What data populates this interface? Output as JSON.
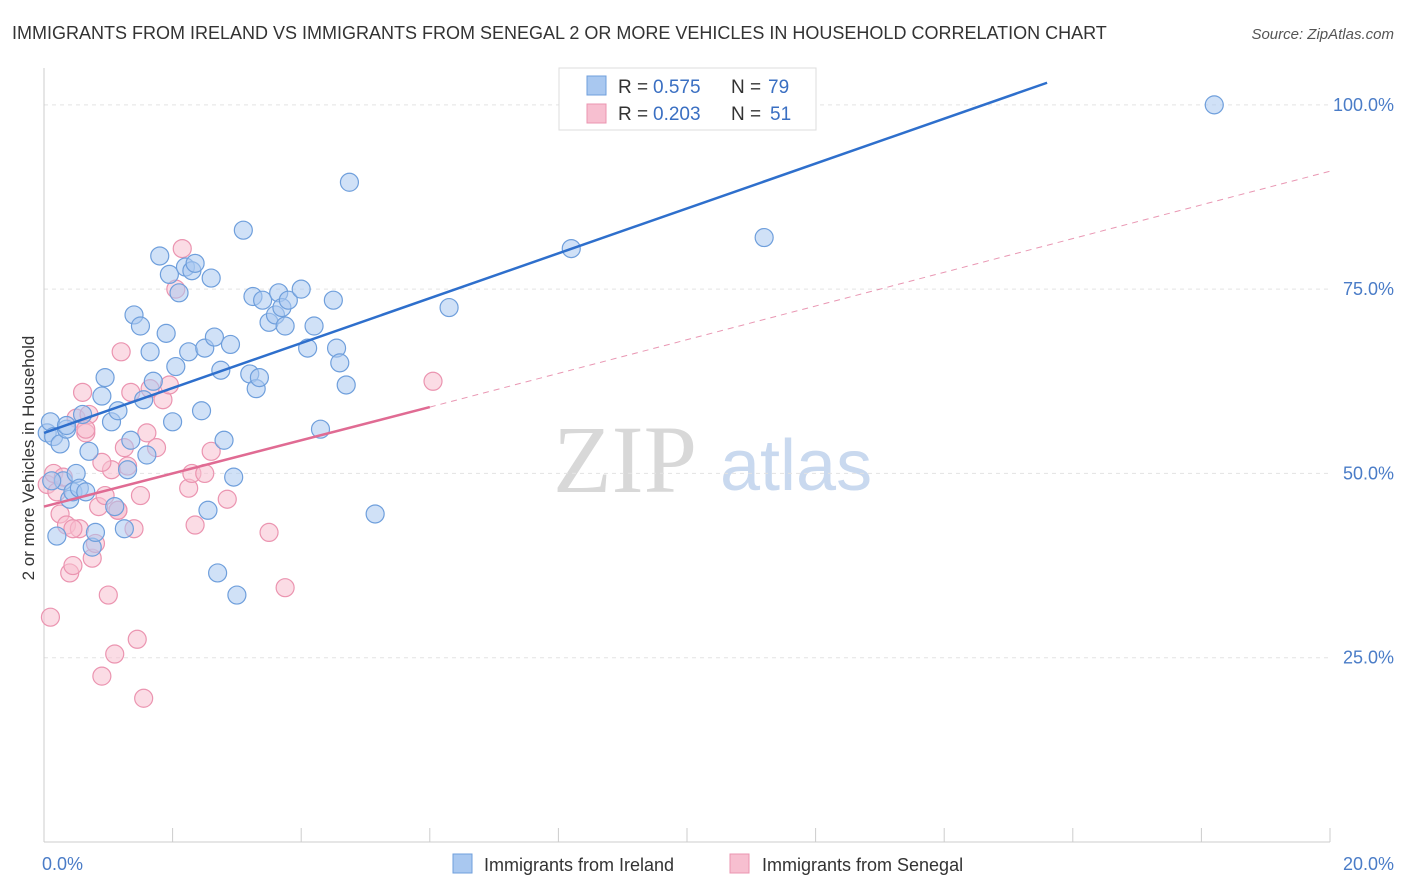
{
  "chart_data": {
    "type": "scatter",
    "title": "IMMIGRANTS FROM IRELAND VS IMMIGRANTS FROM SENEGAL 2 OR MORE VEHICLES IN HOUSEHOLD CORRELATION CHART",
    "source": "Source: ZipAtlas.com",
    "ylabel": "2 or more Vehicles in Household",
    "xlim": [
      0,
      20
    ],
    "ylim": [
      0,
      105
    ],
    "x_tick_labels": {
      "min": "0.0%",
      "max": "20.0%"
    },
    "y_ticks": [
      {
        "value": 25,
        "label": "25.0%"
      },
      {
        "value": 50,
        "label": "50.0%"
      },
      {
        "value": 75,
        "label": "75.0%"
      },
      {
        "value": 100,
        "label": "100.0%"
      }
    ],
    "watermark": {
      "zip": "ZIP",
      "atlas": "atlas"
    },
    "legend": [
      {
        "r_label": "R =",
        "r_value": "0.575",
        "n_label": "N =",
        "n_value": "79"
      },
      {
        "r_label": "R =",
        "r_value": "0.203",
        "n_label": "N =",
        "n_value": "51"
      }
    ],
    "colors": {
      "ireland_fill": "#a9c8f0",
      "ireland_stroke": "#6f9fdc",
      "ireland_line": "#2e6fcc",
      "senegal_fill": "#f7bfd0",
      "senegal_stroke": "#eb94b0",
      "senegal_line": "#e06b93"
    },
    "series": [
      {
        "name": "Immigrants from Ireland",
        "trend": {
          "x0": 0,
          "y0": 55.5,
          "x1": 15.6,
          "y1": 103,
          "dashed_to": null
        },
        "points": [
          [
            0.05,
            55.5
          ],
          [
            0.1,
            57.0
          ],
          [
            0.15,
            55.0
          ],
          [
            0.2,
            41.5
          ],
          [
            0.25,
            54.0
          ],
          [
            0.3,
            49.0
          ],
          [
            0.35,
            56.0
          ],
          [
            0.4,
            46.5
          ],
          [
            0.45,
            47.5
          ],
          [
            0.5,
            50.0
          ],
          [
            0.55,
            48.0
          ],
          [
            0.6,
            58.0
          ],
          [
            0.65,
            47.5
          ],
          [
            0.7,
            53.0
          ],
          [
            0.75,
            40.0
          ],
          [
            0.8,
            42.0
          ],
          [
            0.9,
            60.5
          ],
          [
            0.95,
            63.0
          ],
          [
            1.05,
            57.0
          ],
          [
            1.1,
            45.5
          ],
          [
            1.15,
            58.5
          ],
          [
            1.25,
            42.5
          ],
          [
            1.3,
            50.5
          ],
          [
            1.35,
            54.5
          ],
          [
            1.4,
            71.5
          ],
          [
            1.5,
            70.0
          ],
          [
            1.55,
            60.0
          ],
          [
            1.6,
            52.5
          ],
          [
            1.65,
            66.5
          ],
          [
            1.7,
            62.5
          ],
          [
            1.8,
            79.5
          ],
          [
            1.9,
            69.0
          ],
          [
            1.95,
            77.0
          ],
          [
            2.0,
            57.0
          ],
          [
            2.05,
            64.5
          ],
          [
            2.1,
            74.5
          ],
          [
            2.2,
            78.0
          ],
          [
            2.25,
            66.5
          ],
          [
            2.3,
            77.5
          ],
          [
            2.35,
            78.5
          ],
          [
            2.45,
            58.5
          ],
          [
            2.5,
            67.0
          ],
          [
            2.55,
            45.0
          ],
          [
            2.6,
            76.5
          ],
          [
            2.65,
            68.5
          ],
          [
            2.7,
            36.5
          ],
          [
            2.75,
            64.0
          ],
          [
            2.8,
            54.5
          ],
          [
            2.9,
            67.5
          ],
          [
            2.95,
            49.5
          ],
          [
            3.0,
            33.5
          ],
          [
            3.1,
            83.0
          ],
          [
            3.2,
            63.5
          ],
          [
            3.25,
            74.0
          ],
          [
            3.3,
            61.5
          ],
          [
            3.35,
            63.0
          ],
          [
            3.4,
            73.5
          ],
          [
            3.5,
            70.5
          ],
          [
            3.6,
            71.5
          ],
          [
            3.65,
            74.5
          ],
          [
            3.7,
            72.5
          ],
          [
            3.75,
            70.0
          ],
          [
            3.8,
            73.5
          ],
          [
            4.0,
            75.0
          ],
          [
            4.1,
            67.0
          ],
          [
            4.2,
            70.0
          ],
          [
            4.3,
            56.0
          ],
          [
            4.5,
            73.5
          ],
          [
            4.55,
            67.0
          ],
          [
            4.6,
            65.0
          ],
          [
            4.7,
            62.0
          ],
          [
            4.75,
            89.5
          ],
          [
            5.15,
            44.5
          ],
          [
            6.3,
            72.5
          ],
          [
            8.2,
            80.5
          ],
          [
            11.2,
            82.0
          ],
          [
            18.2,
            100.0
          ],
          [
            0.12,
            49.0
          ],
          [
            0.35,
            56.5
          ]
        ]
      },
      {
        "name": "Immigrants from Senegal",
        "trend": {
          "x0": 0,
          "y0": 45.5,
          "x1": 6.0,
          "y1": 59.0,
          "dashed_to": {
            "x": 20.0,
            "y": 91.0
          }
        },
        "points": [
          [
            0.05,
            48.5
          ],
          [
            0.1,
            30.5
          ],
          [
            0.15,
            50.0
          ],
          [
            0.2,
            47.5
          ],
          [
            0.25,
            44.5
          ],
          [
            0.3,
            49.5
          ],
          [
            0.35,
            43.0
          ],
          [
            0.4,
            36.5
          ],
          [
            0.45,
            37.5
          ],
          [
            0.5,
            57.5
          ],
          [
            0.55,
            42.5
          ],
          [
            0.6,
            61.0
          ],
          [
            0.65,
            55.5
          ],
          [
            0.7,
            58.0
          ],
          [
            0.75,
            38.5
          ],
          [
            0.8,
            40.5
          ],
          [
            0.85,
            45.5
          ],
          [
            0.9,
            22.5
          ],
          [
            0.95,
            47.0
          ],
          [
            1.0,
            33.5
          ],
          [
            1.05,
            50.5
          ],
          [
            1.1,
            25.5
          ],
          [
            1.15,
            45.0
          ],
          [
            1.2,
            66.5
          ],
          [
            1.25,
            53.5
          ],
          [
            1.3,
            51.0
          ],
          [
            1.35,
            61.0
          ],
          [
            1.4,
            42.5
          ],
          [
            1.45,
            27.5
          ],
          [
            1.5,
            47.0
          ],
          [
            1.55,
            19.5
          ],
          [
            1.6,
            55.5
          ],
          [
            1.65,
            61.5
          ],
          [
            1.75,
            53.5
          ],
          [
            1.85,
            60.0
          ],
          [
            1.95,
            62.0
          ],
          [
            2.05,
            75.0
          ],
          [
            2.15,
            80.5
          ],
          [
            2.25,
            48.0
          ],
          [
            2.3,
            50.0
          ],
          [
            2.35,
            43.0
          ],
          [
            2.5,
            50.0
          ],
          [
            2.6,
            53.0
          ],
          [
            2.85,
            46.5
          ],
          [
            3.5,
            42.0
          ],
          [
            3.75,
            34.5
          ],
          [
            6.05,
            62.5
          ],
          [
            0.65,
            56.0
          ],
          [
            0.9,
            51.5
          ],
          [
            1.15,
            45.0
          ],
          [
            0.45,
            42.5
          ]
        ]
      }
    ]
  }
}
